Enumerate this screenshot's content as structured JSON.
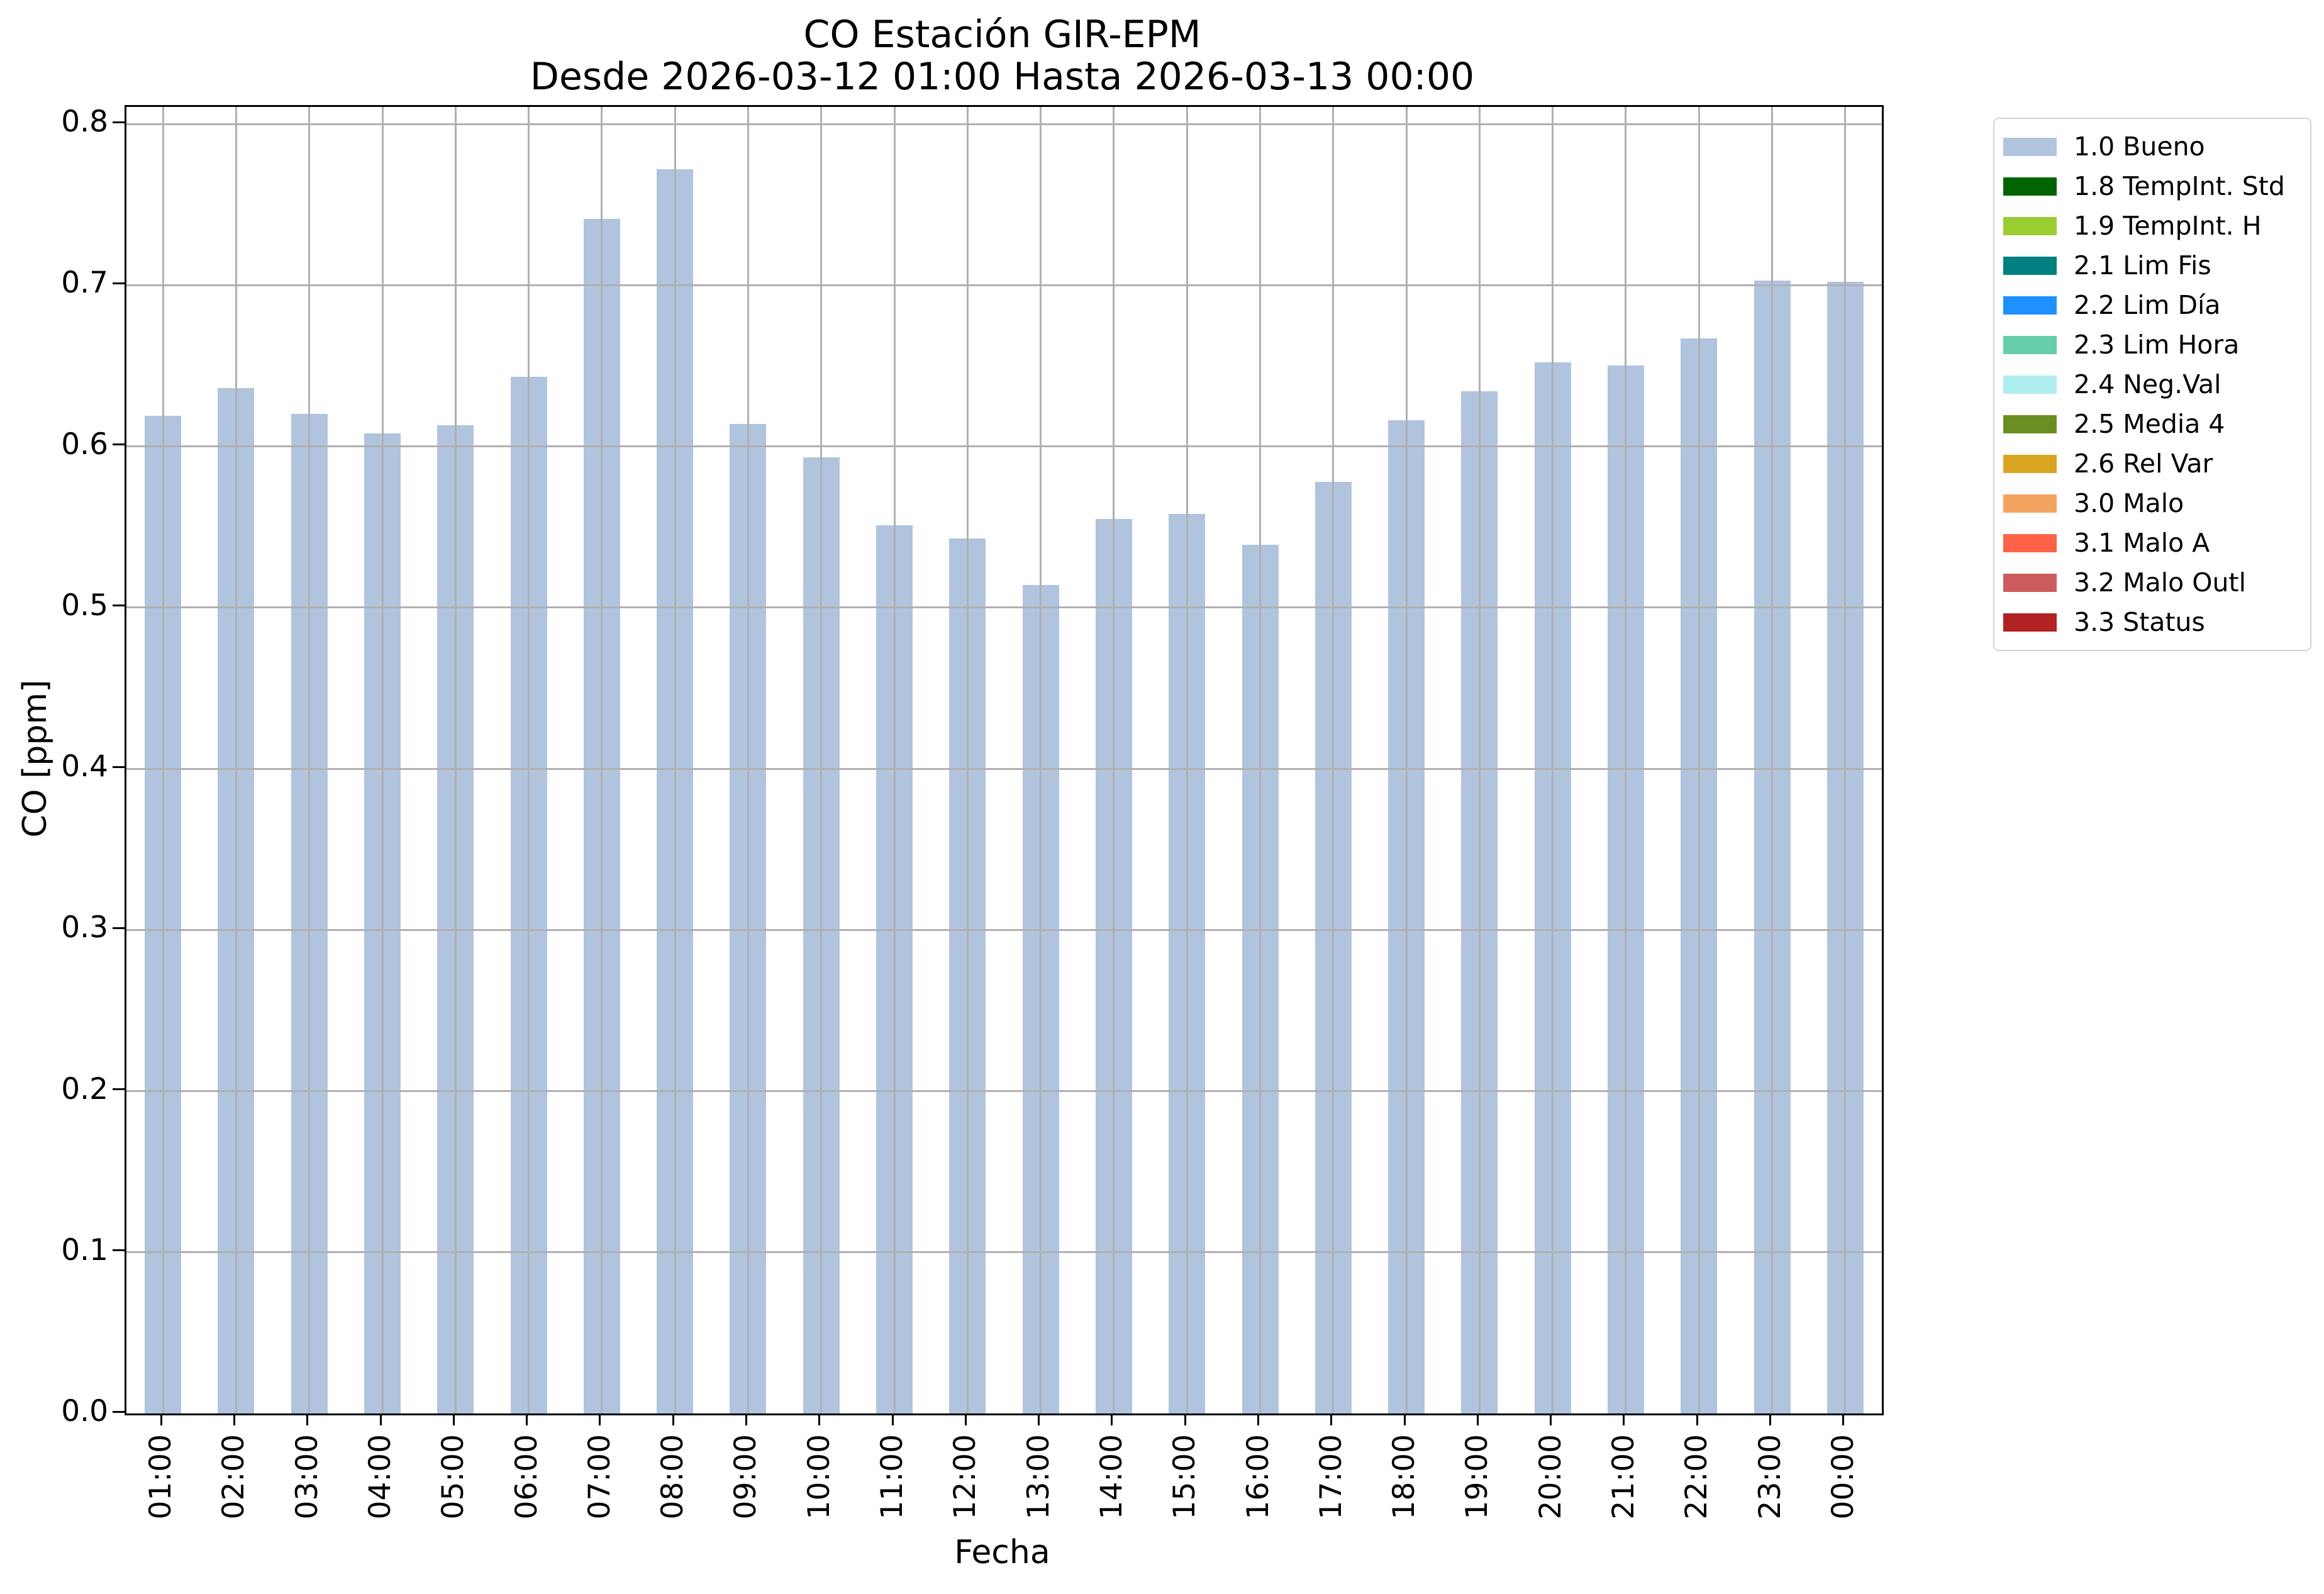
{
  "chart_data": {
    "type": "bar",
    "title": "CO Estación GIR-EPM",
    "subtitle": "Desde 2026-03-12 01:00 Hasta 2026-03-13 00:00",
    "xlabel": "Fecha",
    "ylabel": "CO [ppm]",
    "categories": [
      "01:00",
      "02:00",
      "03:00",
      "04:00",
      "05:00",
      "06:00",
      "07:00",
      "08:00",
      "09:00",
      "10:00",
      "11:00",
      "12:00",
      "13:00",
      "14:00",
      "15:00",
      "16:00",
      "17:00",
      "18:00",
      "19:00",
      "20:00",
      "21:00",
      "22:00",
      "23:00",
      "00:00"
    ],
    "values": [
      0.619,
      0.636,
      0.62,
      0.608,
      0.613,
      0.643,
      0.741,
      0.772,
      0.614,
      0.593,
      0.551,
      0.543,
      0.514,
      0.555,
      0.558,
      0.539,
      0.578,
      0.616,
      0.634,
      0.652,
      0.65,
      0.667,
      0.703,
      0.702
    ],
    "series_name": "1.0 Bueno",
    "bar_color": "#b0c4de",
    "grid": true,
    "grid_color": "#b0b0b0",
    "ylim": [
      0.0,
      0.81
    ],
    "ytick_labels": [
      "0.0",
      "0.1",
      "0.2",
      "0.3",
      "0.4",
      "0.5",
      "0.6",
      "0.7",
      "0.8"
    ],
    "ytick_values": [
      0.0,
      0.1,
      0.2,
      0.3,
      0.4,
      0.5,
      0.6,
      0.7,
      0.8
    ],
    "legend_position": "outside-right",
    "legend": [
      {
        "label": "1.0 Bueno",
        "color": "#b0c4de"
      },
      {
        "label": "1.8 TempInt. Std",
        "color": "#006400"
      },
      {
        "label": "1.9 TempInt. H",
        "color": "#9acd32"
      },
      {
        "label": "2.1 Lim Fis",
        "color": "#008080"
      },
      {
        "label": "2.2 Lim Día",
        "color": "#1e90ff"
      },
      {
        "label": "2.3 Lim Hora",
        "color": "#66cdaa"
      },
      {
        "label": "2.4 Neg.Val",
        "color": "#afeeee"
      },
      {
        "label": "2.5 Media 4",
        "color": "#6b8e23"
      },
      {
        "label": "2.6 Rel Var",
        "color": "#daa520"
      },
      {
        "label": "3.0 Malo",
        "color": "#f4a460"
      },
      {
        "label": "3.1 Malo A",
        "color": "#ff6347"
      },
      {
        "label": "3.2 Malo Outl",
        "color": "#cd5c5c"
      },
      {
        "label": "3.3 Status",
        "color": "#b22222"
      }
    ]
  }
}
